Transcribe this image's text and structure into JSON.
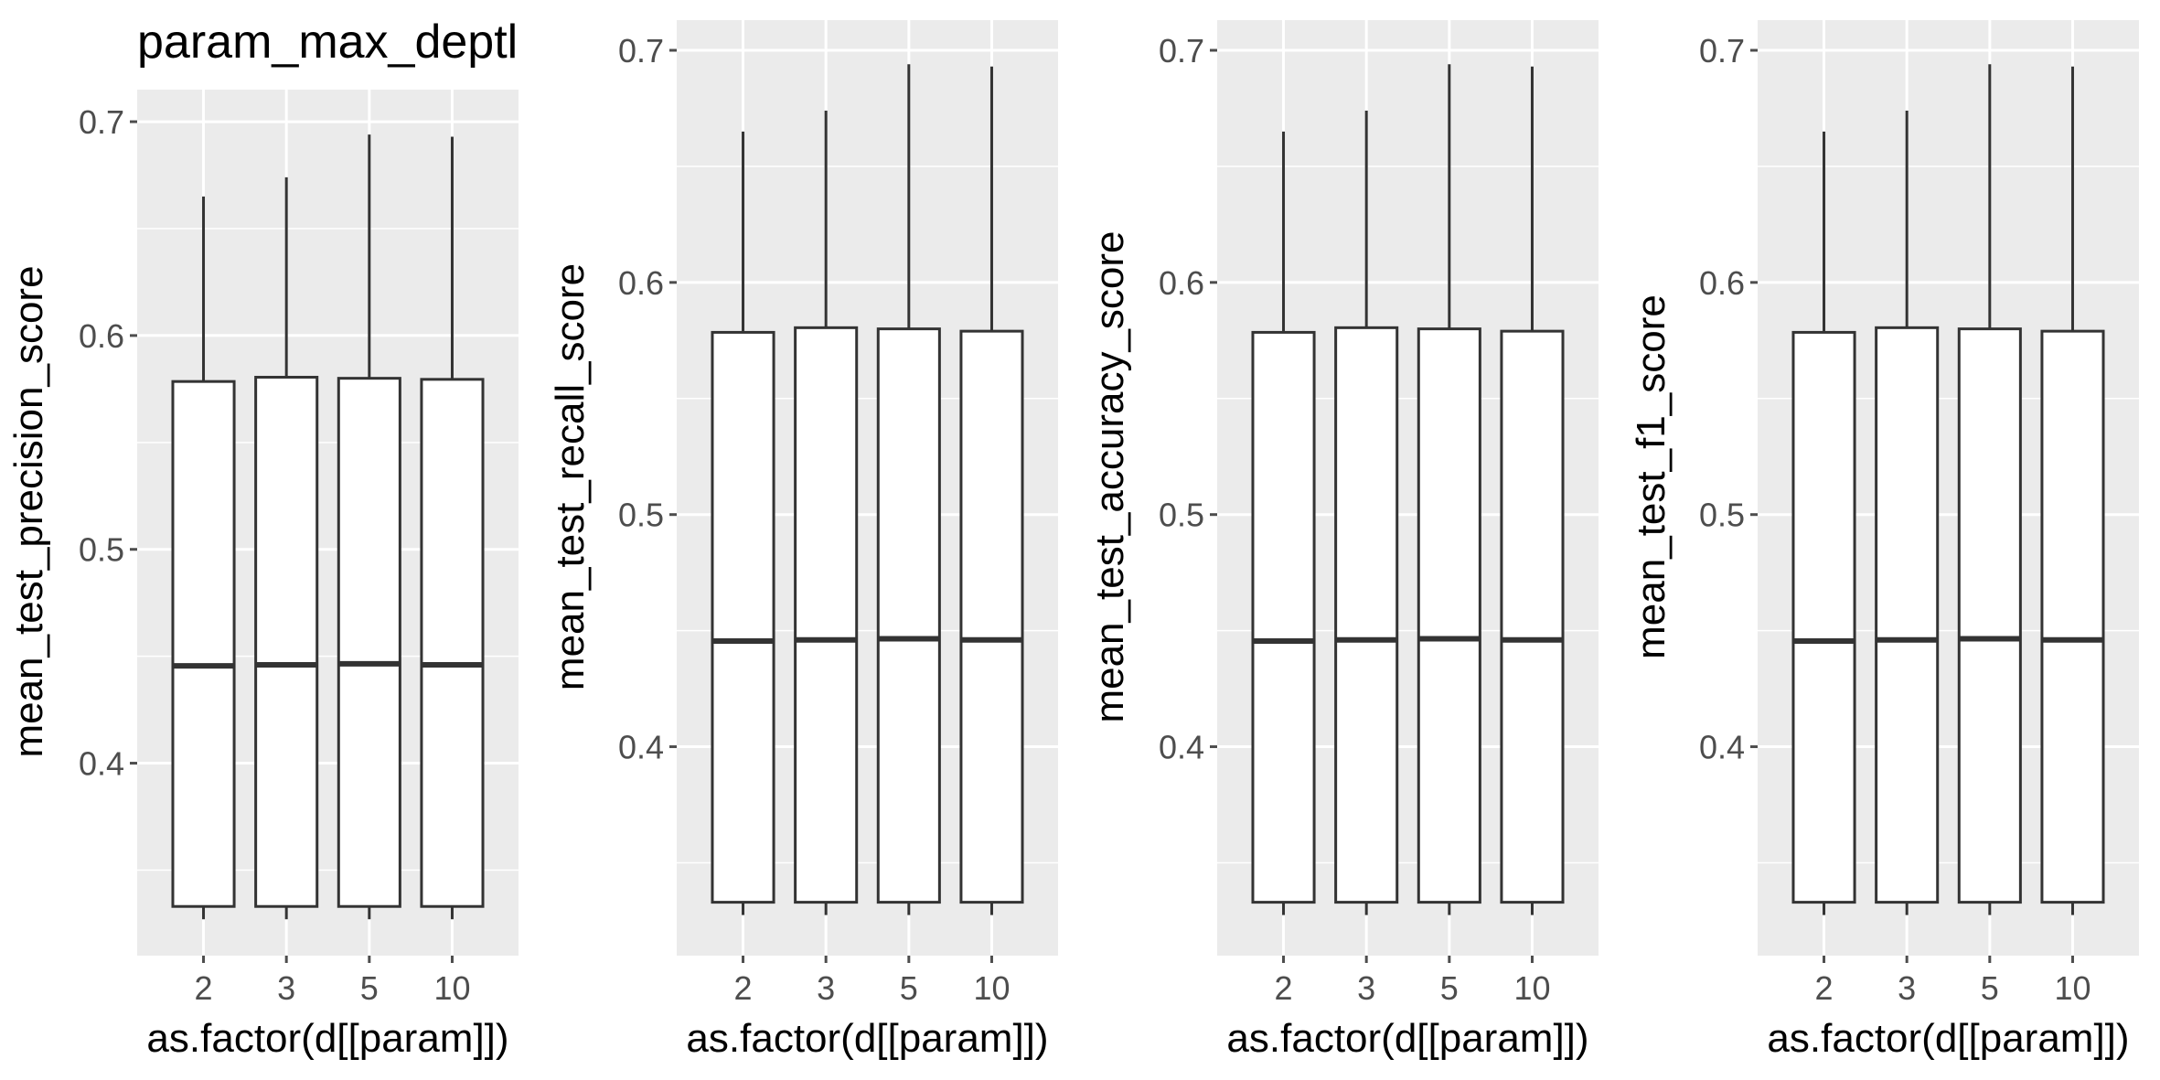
{
  "figure_title": "param_max_deptl",
  "chart_data": [
    {
      "type": "boxplot",
      "xlabel": "as.factor(d[[param]])",
      "ylabel": "mean_test_precision_score",
      "categories": [
        "2",
        "3",
        "5",
        "10"
      ],
      "yticks": [
        "0.4",
        "0.5",
        "0.6",
        "0.7"
      ],
      "ylim": [
        0.31,
        0.715
      ],
      "boxes": [
        {
          "min": 0.333,
          "q1": 0.333,
          "median": 0.4455,
          "q3": 0.5785,
          "max": 0.665
        },
        {
          "min": 0.333,
          "q1": 0.333,
          "median": 0.446,
          "q3": 0.5805,
          "max": 0.674
        },
        {
          "min": 0.333,
          "q1": 0.333,
          "median": 0.4465,
          "q3": 0.58,
          "max": 0.694
        },
        {
          "min": 0.333,
          "q1": 0.333,
          "median": 0.446,
          "q3": 0.5795,
          "max": 0.693
        }
      ],
      "grid": true
    },
    {
      "type": "boxplot",
      "xlabel": "as.factor(d[[param]])",
      "ylabel": "mean_test_recall_score",
      "categories": [
        "2",
        "3",
        "5",
        "10"
      ],
      "yticks": [
        "0.4",
        "0.5",
        "0.6",
        "0.7"
      ],
      "ylim": [
        0.31,
        0.713
      ],
      "boxes": [
        {
          "min": 0.333,
          "q1": 0.333,
          "median": 0.4455,
          "q3": 0.5785,
          "max": 0.665
        },
        {
          "min": 0.333,
          "q1": 0.333,
          "median": 0.446,
          "q3": 0.5805,
          "max": 0.674
        },
        {
          "min": 0.333,
          "q1": 0.333,
          "median": 0.4465,
          "q3": 0.58,
          "max": 0.694
        },
        {
          "min": 0.333,
          "q1": 0.333,
          "median": 0.446,
          "q3": 0.579,
          "max": 0.693
        }
      ],
      "grid": true
    },
    {
      "type": "boxplot",
      "xlabel": "as.factor(d[[param]])",
      "ylabel": "mean_test_accuracy_score",
      "categories": [
        "2",
        "3",
        "5",
        "10"
      ],
      "yticks": [
        "0.4",
        "0.5",
        "0.6",
        "0.7"
      ],
      "ylim": [
        0.31,
        0.713
      ],
      "boxes": [
        {
          "min": 0.333,
          "q1": 0.333,
          "median": 0.4455,
          "q3": 0.5785,
          "max": 0.665
        },
        {
          "min": 0.333,
          "q1": 0.333,
          "median": 0.446,
          "q3": 0.5805,
          "max": 0.674
        },
        {
          "min": 0.333,
          "q1": 0.333,
          "median": 0.4465,
          "q3": 0.58,
          "max": 0.694
        },
        {
          "min": 0.333,
          "q1": 0.333,
          "median": 0.446,
          "q3": 0.579,
          "max": 0.693
        }
      ],
      "grid": true
    },
    {
      "type": "boxplot",
      "xlabel": "as.factor(d[[param]])",
      "ylabel": "mean_test_f1_score",
      "categories": [
        "2",
        "3",
        "5",
        "10"
      ],
      "yticks": [
        "0.4",
        "0.5",
        "0.6",
        "0.7"
      ],
      "ylim": [
        0.31,
        0.713
      ],
      "boxes": [
        {
          "min": 0.333,
          "q1": 0.333,
          "median": 0.4455,
          "q3": 0.5785,
          "max": 0.665
        },
        {
          "min": 0.333,
          "q1": 0.333,
          "median": 0.446,
          "q3": 0.5805,
          "max": 0.674
        },
        {
          "min": 0.333,
          "q1": 0.333,
          "median": 0.4465,
          "q3": 0.58,
          "max": 0.694
        },
        {
          "min": 0.333,
          "q1": 0.333,
          "median": 0.446,
          "q3": 0.579,
          "max": 0.693
        }
      ],
      "grid": true
    }
  ],
  "colors": {
    "panel_background": "#EBEBEB",
    "major_grid": "#FFFFFF",
    "box_fill": "#FFFFFF",
    "box_stroke": "#333333",
    "tick_label": "#4D4D4D",
    "axis_title": "#000000"
  }
}
